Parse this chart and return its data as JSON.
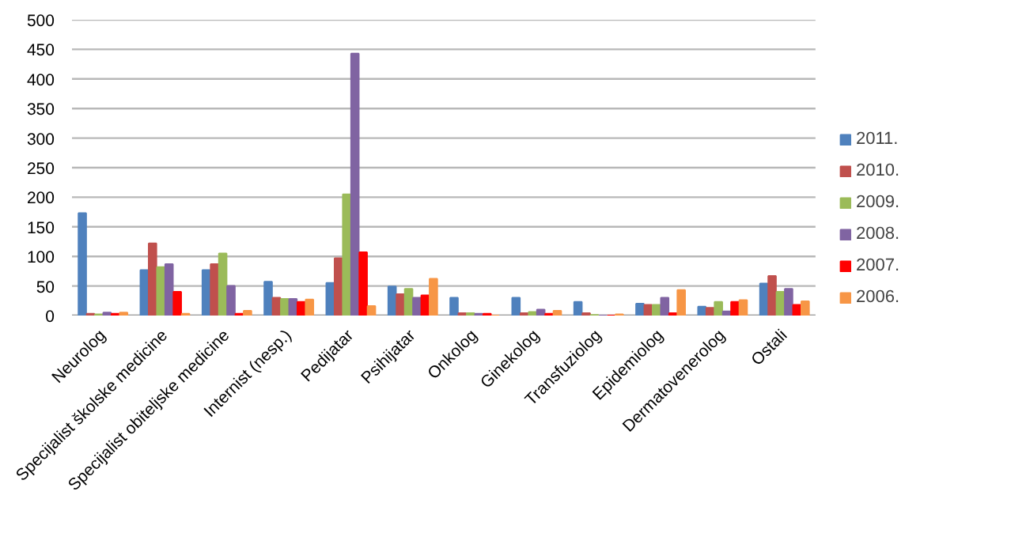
{
  "chart_data": {
    "type": "bar",
    "categories": [
      "Neurolog",
      "Specijalist školske medicine",
      "Specijalist obiteljske medicine",
      "Internist (nesp.)",
      "Pedijatar",
      "Psihijatar",
      "Onkolog",
      "Ginekolog",
      "Transfuziolog",
      "Epidemiolog",
      "Dermatovenerolog",
      "Ostali"
    ],
    "series": [
      {
        "name": "2011.",
        "color": "#4f81bd",
        "values": [
          173,
          77,
          77,
          57,
          55,
          49,
          30,
          30,
          23,
          20,
          15,
          54
        ]
      },
      {
        "name": "2010.",
        "color": "#c0504d",
        "values": [
          3,
          122,
          87,
          30,
          97,
          36,
          4,
          4,
          4,
          18,
          13,
          67
        ]
      },
      {
        "name": "2009.",
        "color": "#9bbb59",
        "values": [
          2,
          82,
          105,
          28,
          205,
          45,
          4,
          6,
          1,
          18,
          23,
          40
        ]
      },
      {
        "name": "2008.",
        "color": "#8064a2",
        "values": [
          5,
          87,
          50,
          28,
          443,
          30,
          3,
          10,
          0,
          30,
          7,
          45
        ]
      },
      {
        "name": "2007.",
        "color": "#ff0000",
        "values": [
          3,
          40,
          3,
          23,
          107,
          34,
          3,
          3,
          0,
          4,
          23,
          18
        ]
      },
      {
        "name": "2006.",
        "color": "#f79646",
        "values": [
          5,
          3,
          8,
          27,
          16,
          62,
          0,
          8,
          2,
          43,
          26,
          24
        ]
      }
    ],
    "ylim": [
      0,
      500
    ],
    "yticks": [
      0,
      50,
      100,
      150,
      200,
      250,
      300,
      350,
      400,
      450,
      500
    ],
    "grid": "y",
    "legend": "right"
  }
}
